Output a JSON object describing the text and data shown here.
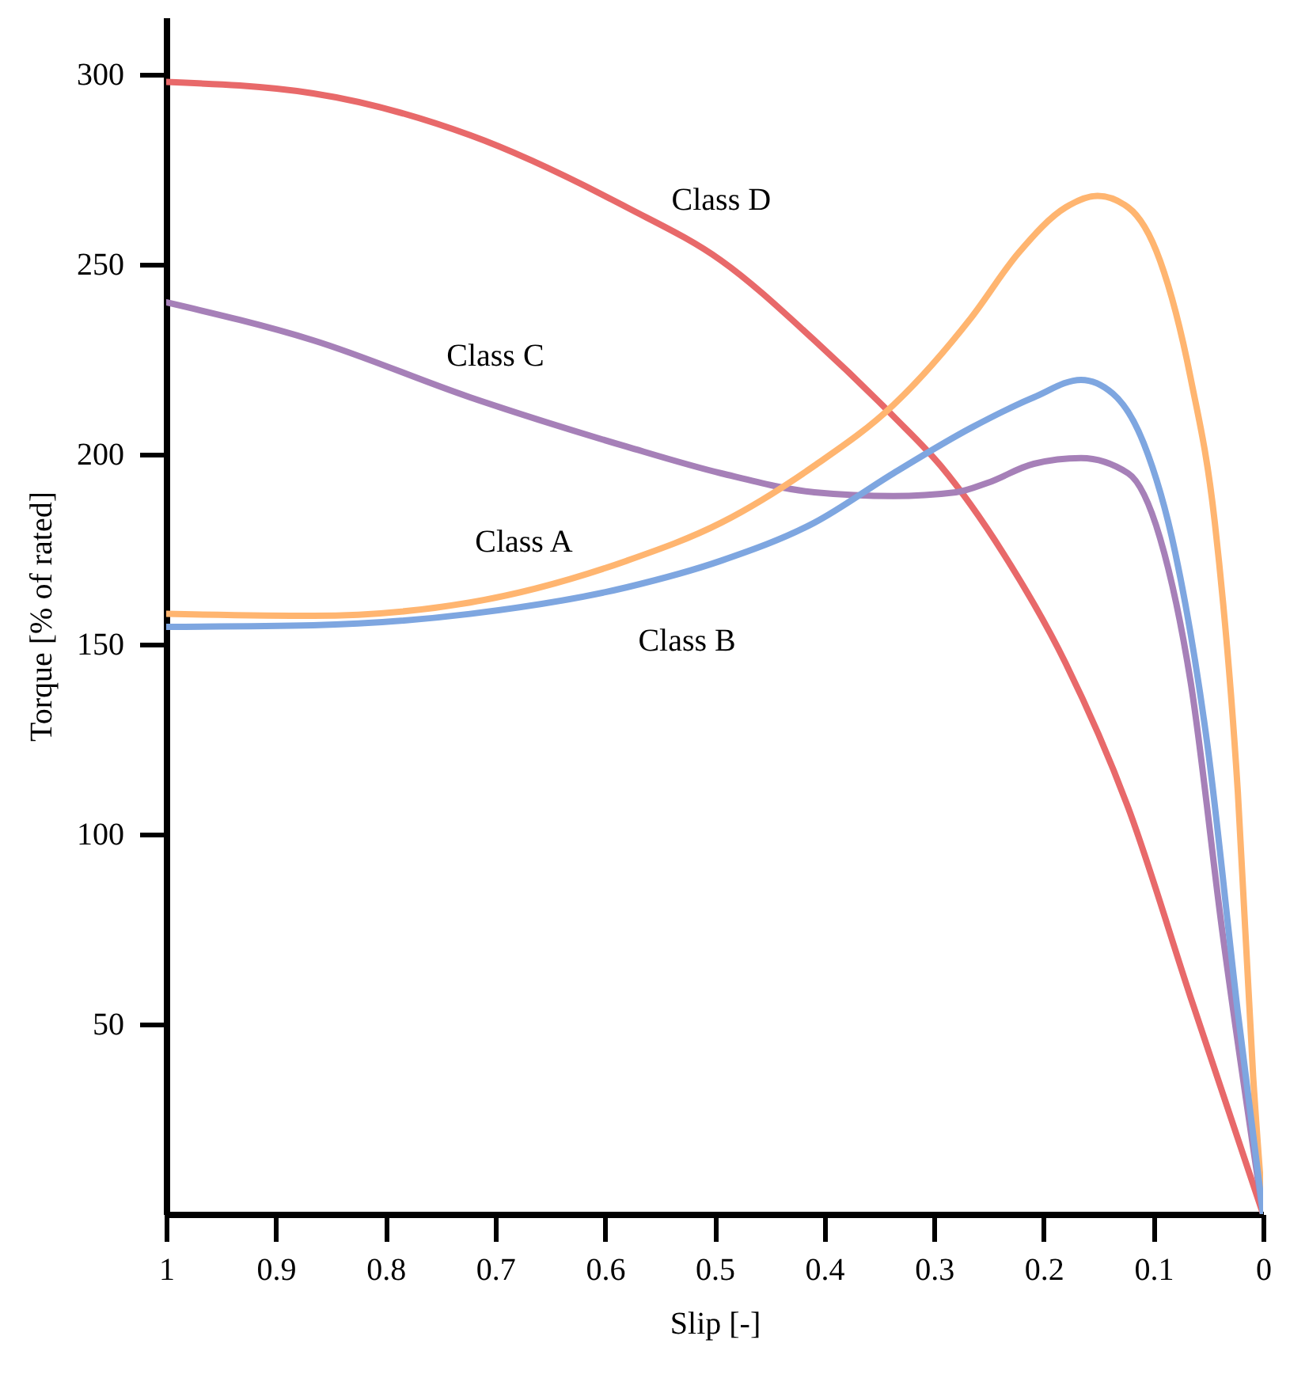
{
  "chart_data": {
    "type": "line",
    "xlabel": "Slip [-]",
    "ylabel": "Torque [% of rated]",
    "xlim": [
      1,
      0
    ],
    "xticks": [
      1,
      0.9,
      0.8,
      0.7,
      0.6,
      0.5,
      0.4,
      0.3,
      0.2,
      0.1,
      0
    ],
    "ylim": [
      0,
      315
    ],
    "yticks": [
      50,
      100,
      150,
      200,
      250,
      300
    ],
    "grid": false,
    "marker": "none",
    "line_style": "solid",
    "series": [
      {
        "name": "Class D",
        "color": "#e8696a",
        "x": [
          1,
          0.866,
          0.723,
          0.58,
          0.494,
          0.409,
          0.337,
          0.294,
          0.237,
          0.18,
          0.123,
          0.066,
          0
        ],
        "values": [
          298,
          295,
          284,
          265,
          251,
          230,
          210,
          197,
          174,
          145,
          107,
          57,
          0
        ]
      },
      {
        "name": "Class C",
        "color": "#a680b8",
        "x": [
          1,
          0.866,
          0.723,
          0.58,
          0.494,
          0.409,
          0.337,
          0.28,
          0.251,
          0.209,
          0.166,
          0.123,
          0.094,
          0.066,
          0.037,
          0
        ],
        "values": [
          240,
          230,
          215,
          202,
          195,
          190,
          189,
          190,
          192.5,
          197.5,
          199,
          195,
          178,
          140,
          74,
          0
        ]
      },
      {
        "name": "Class A",
        "color": "#ffb570",
        "x": [
          1,
          0.866,
          0.723,
          0.58,
          0.494,
          0.409,
          0.337,
          0.266,
          0.223,
          0.18,
          0.151,
          0.123,
          0.094,
          0.066,
          0.044,
          0.023,
          0.009,
          0
        ],
        "values": [
          158,
          157.5,
          161,
          172,
          182,
          197,
          213,
          236,
          253,
          265,
          268,
          265,
          251,
          220,
          182,
          111,
          36,
          0
        ]
      },
      {
        "name": "Class B",
        "color": "#7ea6e0",
        "x": [
          1,
          0.866,
          0.723,
          0.58,
          0.494,
          0.409,
          0.337,
          0.266,
          0.209,
          0.166,
          0.137,
          0.109,
          0.08,
          0.051,
          0.023,
          0
        ],
        "values": [
          154.6,
          155,
          158,
          165,
          172,
          182,
          195,
          207,
          215,
          219.6,
          216,
          203,
          174,
          124,
          53,
          0
        ]
      }
    ]
  }
}
